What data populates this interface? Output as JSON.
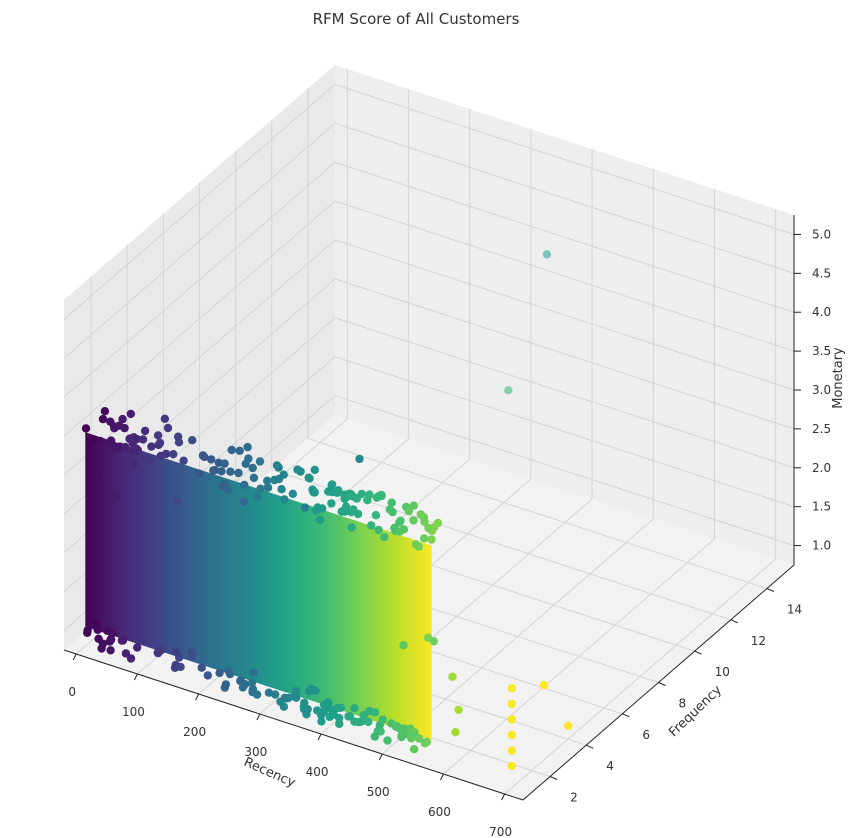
{
  "chart_data": {
    "type": "scatter",
    "title": "RFM Score of All Customers",
    "xlabel": "Recency",
    "ylabel": "Frequency",
    "zlabel": "Monetary",
    "xlim": [
      -20,
      730
    ],
    "ylim": [
      0.5,
      15.5
    ],
    "zlim": [
      0.75,
      5.25
    ],
    "xticks": [
      "0",
      "100",
      "200",
      "300",
      "400",
      "500",
      "600",
      "700"
    ],
    "yticks": [
      "2",
      "4",
      "6",
      "8",
      "10",
      "12",
      "14"
    ],
    "zticks": [
      "1.0",
      "1.5",
      "2.0",
      "2.5",
      "3.0",
      "3.5",
      "4.0",
      "4.5",
      "5.0"
    ],
    "colormap": "viridis",
    "colormap_stops": [
      "#440154",
      "#482878",
      "#3e4989",
      "#31688e",
      "#26828e",
      "#1f9e89",
      "#35b779",
      "#6ece58",
      "#b5de2b",
      "#fde725"
    ],
    "grid": true,
    "dense_region": {
      "recency_range": [
        0,
        566
      ],
      "frequency_range": [
        1,
        4
      ],
      "monetary_range": [
        1.0,
        2.0
      ]
    },
    "points": [
      {
        "x": 697,
        "y": 1,
        "z": 1.0
      },
      {
        "x": 697,
        "y": 1,
        "z": 1.2
      },
      {
        "x": 697,
        "y": 1,
        "z": 1.4
      },
      {
        "x": 697,
        "y": 1,
        "z": 1.6
      },
      {
        "x": 697,
        "y": 1,
        "z": 1.8
      },
      {
        "x": 697,
        "y": 1,
        "z": 2.0
      },
      {
        "x": 720,
        "y": 2,
        "z": 1.9
      },
      {
        "x": 730,
        "y": 3,
        "z": 1.2
      },
      {
        "x": 230,
        "y": 2,
        "z": 3.0
      },
      {
        "x": 80,
        "y": 1,
        "z": 3.3
      },
      {
        "x": 150,
        "y": 1,
        "z": 3.0
      },
      {
        "x": 300,
        "y": 3,
        "z": 2.9
      },
      {
        "x": 330,
        "y": 5,
        "z": 3.2
      },
      {
        "x": 455,
        "y": 9,
        "z": 3.6
      },
      {
        "x": 400,
        "y": 13,
        "z": 4.4
      },
      {
        "x": 520,
        "y": 1,
        "z": 2.1
      },
      {
        "x": 560,
        "y": 1,
        "z": 2.3
      },
      {
        "x": 600,
        "y": 1,
        "z": 1.9
      },
      {
        "x": 610,
        "y": 1,
        "z": 1.5
      },
      {
        "x": 605,
        "y": 1,
        "z": 1.2
      },
      {
        "x": 540,
        "y": 2,
        "z": 2.0
      },
      {
        "x": 20,
        "y": 1,
        "z": 3.0
      },
      {
        "x": 50,
        "y": 1,
        "z": 2.8
      }
    ]
  }
}
